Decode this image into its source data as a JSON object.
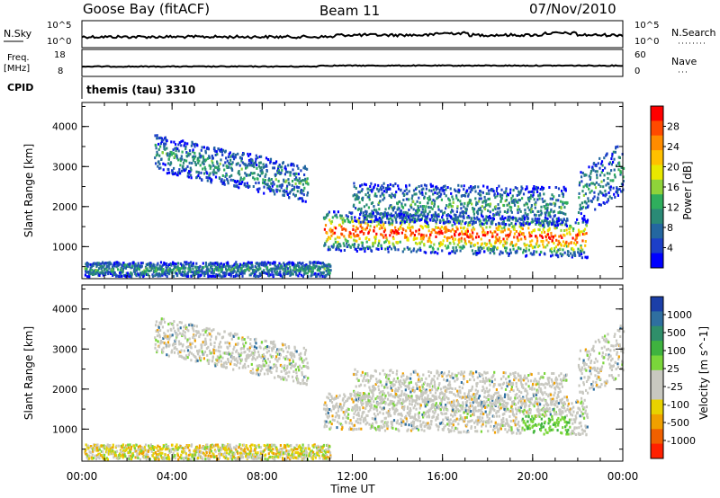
{
  "header": {
    "station": "Goose Bay (fitACF)",
    "beam": "Beam 11",
    "date": "07/Nov/2010"
  },
  "nsky_panel": {
    "left_label": "N.Sky",
    "right_label": "N.Search",
    "left_ticks": [
      "10^5",
      "10^0"
    ],
    "right_ticks": [
      "10^5",
      "10^0"
    ]
  },
  "freq_panel": {
    "left_label_line1": "Freq.",
    "left_label_line2": "[MHz]",
    "right_label": "Nave",
    "left_ticks": [
      "18",
      "8"
    ],
    "right_ticks": [
      "60",
      "0"
    ]
  },
  "cpid": {
    "label": "CPID",
    "mode": "themis (tau) 3310"
  },
  "chart_data": [
    {
      "type": "heatmap",
      "name_on_chart": "Power [dB]",
      "ylabel": "Slant Range [km]",
      "xlabel": "Time UT",
      "x_ticks": [
        "00:00",
        "04:00",
        "08:00",
        "12:00",
        "16:00",
        "20:00",
        "00:00"
      ],
      "y_ticks": [
        "1000",
        "2000",
        "3000",
        "4000"
      ],
      "ylim": [
        200,
        4600
      ],
      "xlim_hours": [
        0,
        24
      ],
      "colorbar_label": "Power [dB]",
      "colorbar_ticks": [
        "28",
        "24",
        "20",
        "16",
        "12",
        "8",
        "4"
      ],
      "colorbar_colors": [
        "#ff0000",
        "#ff4a00",
        "#ff8c00",
        "#ffc000",
        "#e8e800",
        "#8fd33a",
        "#2fae5d",
        "#2a8a76",
        "#2467a0",
        "#1c3fc8",
        "#0000ff"
      ],
      "echo_regions": [
        {
          "t_start": 3.2,
          "t_end": 10.0,
          "range_center_start": 3350,
          "range_center_end": 2550,
          "width_km": 650
        },
        {
          "t_start": 10.7,
          "t_end": 22.4,
          "range_center_start": 1400,
          "range_center_end": 1200,
          "width_km": 700
        },
        {
          "t_start": 12.0,
          "t_end": 21.5,
          "range_center_start": 2100,
          "range_center_end": 2000,
          "width_km": 700
        },
        {
          "t_start": 0.1,
          "t_end": 11.0,
          "range_center_start": 430,
          "range_center_end": 430,
          "width_km": 260
        },
        {
          "t_start": 22.0,
          "t_end": 24.0,
          "range_center_start": 2200,
          "range_center_end": 3000,
          "width_km": 900
        }
      ]
    },
    {
      "type": "heatmap",
      "ylabel": "Slant Range [km]",
      "xlabel": "Time UT",
      "x_ticks": [
        "00:00",
        "04:00",
        "08:00",
        "12:00",
        "16:00",
        "20:00",
        "00:00"
      ],
      "y_ticks": [
        "1000",
        "2000",
        "3000",
        "4000"
      ],
      "ylim": [
        200,
        4600
      ],
      "xlim_hours": [
        0,
        24
      ],
      "colorbar_label": "Velocity [m s^-1]",
      "colorbar_ticks": [
        "1000",
        "500",
        "100",
        "25",
        "-25",
        "-100",
        "-500",
        "-1000"
      ],
      "colorbar_colors": [
        "#1b3fa8",
        "#2f6fa0",
        "#2f8f6a",
        "#3fb33f",
        "#7ad63a",
        "#c8c8c0",
        "#c8c8c0",
        "#e8d200",
        "#f0a000",
        "#f06000",
        "#ff2000"
      ],
      "echo_regions": [
        {
          "t_start": 3.2,
          "t_end": 10.0,
          "range_center_start": 3350,
          "range_center_end": 2550,
          "width_km": 650
        },
        {
          "t_start": 10.7,
          "t_end": 22.4,
          "range_center_start": 1450,
          "range_center_end": 1300,
          "width_km": 650
        },
        {
          "t_start": 12.0,
          "t_end": 21.5,
          "range_center_start": 2000,
          "range_center_end": 1900,
          "width_km": 700
        },
        {
          "t_start": 0.1,
          "t_end": 11.0,
          "range_center_start": 400,
          "range_center_end": 400,
          "width_km": 300
        },
        {
          "t_start": 22.0,
          "t_end": 24.0,
          "range_center_start": 2300,
          "range_center_end": 3000,
          "width_km": 900
        }
      ]
    }
  ]
}
